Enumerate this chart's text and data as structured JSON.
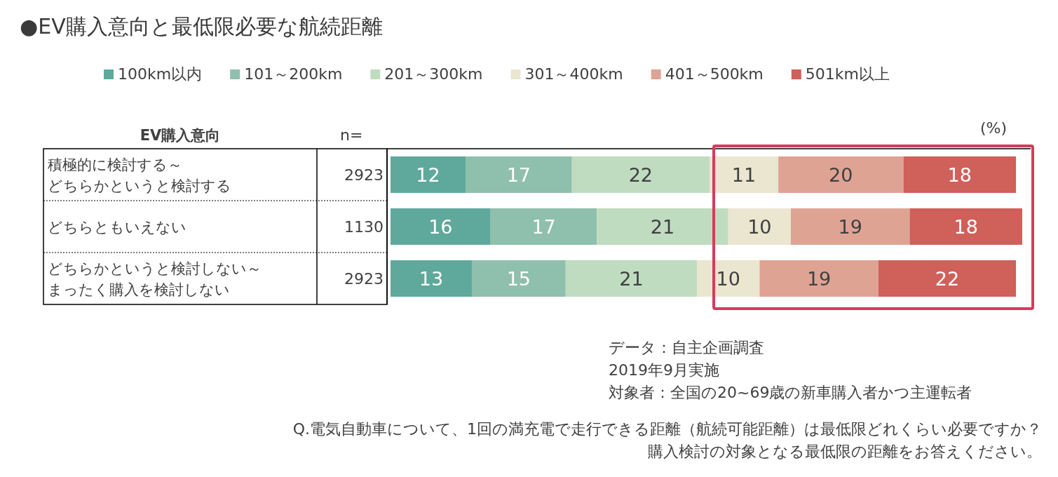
{
  "chart_data": {
    "type": "bar",
    "orientation": "horizontal",
    "stacked": true,
    "data_labels": true,
    "legend": "top",
    "title": "●EV購入意向と最低限必要な航続距離",
    "ylabel": "EV購入意向",
    "xlabel": "(%)",
    "categories": [
      "積極的に検討する～どちらかというと検討する",
      "どちらともいえない",
      "どちらかというと検討しない～まったく購入を検討しない"
    ],
    "series": [
      {
        "name": "100km以内",
        "color": "#5fa99c",
        "values": [
          12,
          16,
          13
        ]
      },
      {
        "name": "101～200km",
        "color": "#8fbfad",
        "values": [
          17,
          17,
          15
        ]
      },
      {
        "name": "201～300km",
        "color": "#bfdcc0",
        "values": [
          22,
          21,
          21
        ]
      },
      {
        "name": "301～400km",
        "color": "#ebe6d0",
        "values": [
          11,
          10,
          10
        ]
      },
      {
        "name": "401～500km",
        "color": "#dfa394",
        "values": [
          20,
          19,
          19
        ]
      },
      {
        "name": "501km以上",
        "color": "#d0605a",
        "values": [
          18,
          18,
          22
        ]
      }
    ],
    "annotations": [
      "n=",
      "2923",
      "1130",
      "2923",
      "データ：自主企画調査",
      "2019年9月実施",
      "対象者：全国の20~69歳の新車購入者かつ主運転者",
      "Q.電気自動車について、1回の満充電で走行できる距離（航続可能距離）は最低限どれくらい必要ですか？",
      "購入検討の対象となる最低限の距離をお答えください。"
    ]
  }
}
